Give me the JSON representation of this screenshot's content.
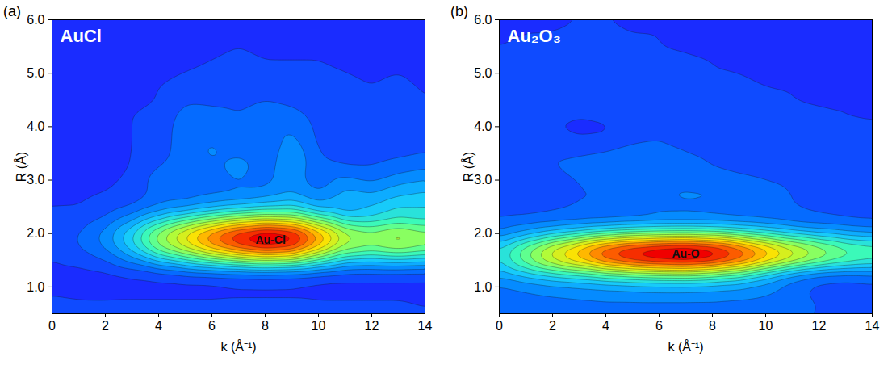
{
  "chart_data": [
    {
      "type": "contour",
      "panel": "(a)",
      "title": "AuCl",
      "x_label": "k (Å⁻¹)",
      "y_label": "R (Å)",
      "xlim": [
        0,
        14
      ],
      "ylim": [
        0.5,
        6
      ],
      "xticks": [
        0,
        2,
        4,
        6,
        8,
        10,
        12,
        14
      ],
      "yticks": [
        1,
        2,
        3,
        4,
        5,
        6
      ],
      "colors": [
        "#1a2cff",
        "#0078ff",
        "#14c8ff",
        "#40ffb0",
        "#a8ff40",
        "#ffe000",
        "#ff7000",
        "#f00000"
      ],
      "annotations": [
        {
          "text": "Au-Cl",
          "x": 8.2,
          "y": 1.88
        }
      ],
      "k": [
        0,
        1,
        2,
        3,
        4,
        5,
        6,
        7,
        8,
        9,
        10,
        11,
        12,
        13,
        14
      ],
      "R": [
        0.5,
        0.75,
        1.0,
        1.25,
        1.5,
        1.75,
        2.0,
        2.25,
        2.5,
        2.75,
        3.0,
        3.25,
        3.5,
        3.75,
        4.0,
        4.25,
        4.5,
        4.75,
        5.0,
        5.25,
        5.5,
        5.75,
        6.0
      ],
      "cells": [
        [
          0.1,
          0.09,
          0.08,
          0.08,
          0.08,
          0.08,
          0.08,
          0.08,
          0.08,
          0.08,
          0.07,
          0.07,
          0.07,
          0.07,
          0.06
        ],
        [
          0.06,
          0.05,
          0.05,
          0.05,
          0.05,
          0.05,
          0.05,
          0.05,
          0.05,
          0.05,
          0.05,
          0.05,
          0.05,
          0.05,
          0.04
        ],
        [
          0.03,
          0.02,
          0.02,
          0.03,
          0.03,
          0.03,
          0.03,
          0.04,
          0.04,
          0.04,
          0.03,
          0.03,
          0.03,
          0.03,
          0.03
        ],
        [
          0.03,
          0.03,
          0.04,
          0.06,
          0.08,
          0.1,
          0.11,
          0.12,
          0.13,
          0.12,
          0.1,
          0.08,
          0.08,
          0.08,
          0.08
        ],
        [
          0.05,
          0.07,
          0.1,
          0.17,
          0.27,
          0.34,
          0.41,
          0.47,
          0.51,
          0.49,
          0.39,
          0.29,
          0.27,
          0.29,
          0.27
        ],
        [
          0.07,
          0.1,
          0.16,
          0.29,
          0.46,
          0.58,
          0.71,
          0.81,
          0.88,
          0.84,
          0.67,
          0.5,
          0.46,
          0.5,
          0.46
        ],
        [
          0.08,
          0.1,
          0.17,
          0.3,
          0.48,
          0.62,
          0.75,
          0.86,
          0.93,
          0.89,
          0.71,
          0.53,
          0.48,
          0.53,
          0.48
        ],
        [
          0.06,
          0.07,
          0.11,
          0.19,
          0.3,
          0.39,
          0.47,
          0.54,
          0.58,
          0.55,
          0.44,
          0.33,
          0.32,
          0.36,
          0.34
        ],
        [
          0.05,
          0.05,
          0.07,
          0.1,
          0.15,
          0.18,
          0.22,
          0.25,
          0.28,
          0.3,
          0.22,
          0.2,
          0.25,
          0.3,
          0.3
        ],
        [
          0.04,
          0.04,
          0.05,
          0.07,
          0.12,
          0.12,
          0.14,
          0.15,
          0.17,
          0.2,
          0.15,
          0.22,
          0.2,
          0.24,
          0.26
        ],
        [
          0.04,
          0.04,
          0.04,
          0.06,
          0.14,
          0.12,
          0.12,
          0.15,
          0.13,
          0.18,
          0.12,
          0.17,
          0.14,
          0.18,
          0.2
        ],
        [
          0.04,
          0.04,
          0.04,
          0.05,
          0.1,
          0.12,
          0.14,
          0.18,
          0.12,
          0.2,
          0.11,
          0.1,
          0.1,
          0.12,
          0.14
        ],
        [
          0.04,
          0.04,
          0.04,
          0.05,
          0.07,
          0.13,
          0.16,
          0.14,
          0.11,
          0.2,
          0.1,
          0.08,
          0.08,
          0.09,
          0.1
        ],
        [
          0.04,
          0.04,
          0.04,
          0.05,
          0.06,
          0.14,
          0.15,
          0.12,
          0.11,
          0.17,
          0.09,
          0.07,
          0.07,
          0.07,
          0.08
        ],
        [
          0.03,
          0.03,
          0.04,
          0.05,
          0.06,
          0.14,
          0.13,
          0.11,
          0.12,
          0.14,
          0.09,
          0.07,
          0.06,
          0.06,
          0.07
        ],
        [
          0.03,
          0.03,
          0.04,
          0.05,
          0.06,
          0.12,
          0.11,
          0.1,
          0.12,
          0.11,
          0.09,
          0.08,
          0.06,
          0.08,
          0.06
        ],
        [
          0.03,
          0.03,
          0.03,
          0.04,
          0.05,
          0.09,
          0.09,
          0.09,
          0.1,
          0.09,
          0.08,
          0.08,
          0.06,
          0.09,
          0.05
        ],
        [
          0.02,
          0.03,
          0.03,
          0.04,
          0.05,
          0.07,
          0.08,
          0.08,
          0.08,
          0.07,
          0.07,
          0.07,
          0.05,
          0.07,
          0.04
        ],
        [
          0.02,
          0.02,
          0.03,
          0.03,
          0.04,
          0.05,
          0.06,
          0.07,
          0.06,
          0.06,
          0.06,
          0.05,
          0.04,
          0.05,
          0.03
        ],
        [
          0.02,
          0.02,
          0.02,
          0.03,
          0.03,
          0.04,
          0.05,
          0.06,
          0.05,
          0.05,
          0.05,
          0.04,
          0.03,
          0.03,
          0.03
        ],
        [
          0.02,
          0.02,
          0.02,
          0.02,
          0.03,
          0.03,
          0.04,
          0.05,
          0.04,
          0.04,
          0.04,
          0.03,
          0.03,
          0.03,
          0.02
        ],
        [
          0.01,
          0.02,
          0.02,
          0.02,
          0.02,
          0.03,
          0.03,
          0.04,
          0.03,
          0.03,
          0.03,
          0.03,
          0.02,
          0.02,
          0.02
        ],
        [
          0.01,
          0.01,
          0.02,
          0.02,
          0.02,
          0.02,
          0.03,
          0.03,
          0.03,
          0.03,
          0.02,
          0.02,
          0.02,
          0.02,
          0.02
        ]
      ]
    },
    {
      "type": "contour",
      "panel": "(b)",
      "title": "Au₂O₃",
      "x_label": "k (Å⁻¹)",
      "y_label": "R (Å)",
      "xlim": [
        0,
        14
      ],
      "ylim": [
        0.5,
        6
      ],
      "xticks": [
        0,
        2,
        4,
        6,
        8,
        10,
        12,
        14
      ],
      "yticks": [
        1,
        2,
        3,
        4,
        5,
        6
      ],
      "colors": [
        "#1a2cff",
        "#0078ff",
        "#14c8ff",
        "#40ffb0",
        "#a8ff40",
        "#ffe000",
        "#ff7000",
        "#f00000"
      ],
      "annotations": [
        {
          "text": "Au-O",
          "x": 7.0,
          "y": 1.62
        }
      ],
      "k": [
        0,
        1,
        2,
        3,
        4,
        5,
        6,
        7,
        8,
        9,
        10,
        11,
        12,
        13,
        14
      ],
      "R": [
        0.5,
        0.75,
        1.0,
        1.25,
        1.5,
        1.75,
        2.0,
        2.25,
        2.5,
        2.75,
        3.0,
        3.25,
        3.5,
        3.75,
        4.0,
        4.25,
        4.5,
        4.75,
        5.0,
        5.25,
        5.5,
        5.75,
        6.0
      ],
      "cells": [
        [
          0.1,
          0.1,
          0.1,
          0.1,
          0.1,
          0.1,
          0.1,
          0.1,
          0.1,
          0.1,
          0.1,
          0.1,
          0.1,
          0.1,
          0.1
        ],
        [
          0.12,
          0.13,
          0.14,
          0.15,
          0.16,
          0.16,
          0.16,
          0.16,
          0.16,
          0.15,
          0.14,
          0.12,
          0.1,
          0.09,
          0.08
        ],
        [
          0.14,
          0.16,
          0.18,
          0.19,
          0.2,
          0.21,
          0.22,
          0.22,
          0.21,
          0.2,
          0.17,
          0.12,
          0.08,
          0.07,
          0.08
        ],
        [
          0.22,
          0.28,
          0.33,
          0.37,
          0.42,
          0.45,
          0.47,
          0.48,
          0.45,
          0.4,
          0.3,
          0.2,
          0.15,
          0.14,
          0.15
        ],
        [
          0.3,
          0.44,
          0.57,
          0.67,
          0.79,
          0.86,
          0.9,
          0.92,
          0.88,
          0.79,
          0.67,
          0.57,
          0.48,
          0.41,
          0.37
        ],
        [
          0.3,
          0.43,
          0.56,
          0.67,
          0.78,
          0.85,
          0.89,
          0.91,
          0.87,
          0.78,
          0.67,
          0.56,
          0.48,
          0.41,
          0.38
        ],
        [
          0.16,
          0.22,
          0.28,
          0.33,
          0.38,
          0.42,
          0.44,
          0.45,
          0.43,
          0.39,
          0.34,
          0.29,
          0.25,
          0.22,
          0.2
        ],
        [
          0.1,
          0.11,
          0.12,
          0.13,
          0.14,
          0.15,
          0.16,
          0.16,
          0.16,
          0.15,
          0.14,
          0.12,
          0.11,
          0.1,
          0.09
        ],
        [
          0.08,
          0.08,
          0.09,
          0.1,
          0.1,
          0.11,
          0.14,
          0.14,
          0.13,
          0.12,
          0.11,
          0.1,
          0.09,
          0.08,
          0.08
        ],
        [
          0.08,
          0.08,
          0.09,
          0.1,
          0.1,
          0.12,
          0.15,
          0.16,
          0.16,
          0.15,
          0.12,
          0.1,
          0.09,
          0.08,
          0.08
        ],
        [
          0.08,
          0.08,
          0.09,
          0.1,
          0.11,
          0.12,
          0.13,
          0.13,
          0.12,
          0.11,
          0.1,
          0.09,
          0.08,
          0.08,
          0.07
        ],
        [
          0.08,
          0.09,
          0.1,
          0.11,
          0.12,
          0.14,
          0.15,
          0.12,
          0.1,
          0.09,
          0.08,
          0.08,
          0.07,
          0.07,
          0.07
        ],
        [
          0.08,
          0.09,
          0.1,
          0.1,
          0.11,
          0.12,
          0.11,
          0.1,
          0.09,
          0.08,
          0.08,
          0.07,
          0.07,
          0.07,
          0.06
        ],
        [
          0.08,
          0.08,
          0.08,
          0.06,
          0.06,
          0.09,
          0.1,
          0.09,
          0.08,
          0.08,
          0.07,
          0.07,
          0.06,
          0.06,
          0.06
        ],
        [
          0.08,
          0.07,
          0.05,
          0.03,
          0.04,
          0.08,
          0.09,
          0.08,
          0.08,
          0.07,
          0.07,
          0.06,
          0.06,
          0.05,
          0.05
        ],
        [
          0.08,
          0.08,
          0.07,
          0.06,
          0.07,
          0.09,
          0.09,
          0.08,
          0.07,
          0.07,
          0.06,
          0.06,
          0.05,
          0.05,
          0.05
        ],
        [
          0.08,
          0.09,
          0.1,
          0.1,
          0.1,
          0.1,
          0.09,
          0.08,
          0.07,
          0.06,
          0.06,
          0.05,
          0.05,
          0.05,
          0.04
        ],
        [
          0.08,
          0.09,
          0.1,
          0.1,
          0.1,
          0.09,
          0.08,
          0.07,
          0.06,
          0.06,
          0.05,
          0.05,
          0.04,
          0.04,
          0.04
        ],
        [
          0.07,
          0.08,
          0.09,
          0.09,
          0.09,
          0.08,
          0.07,
          0.06,
          0.05,
          0.05,
          0.04,
          0.04,
          0.04,
          0.03,
          0.03
        ],
        [
          0.06,
          0.07,
          0.08,
          0.08,
          0.08,
          0.07,
          0.06,
          0.05,
          0.05,
          0.04,
          0.04,
          0.03,
          0.03,
          0.03,
          0.03
        ],
        [
          0.05,
          0.06,
          0.07,
          0.07,
          0.07,
          0.06,
          0.05,
          0.05,
          0.04,
          0.04,
          0.03,
          0.03,
          0.03,
          0.02,
          0.02
        ],
        [
          0.04,
          0.05,
          0.05,
          0.06,
          0.06,
          0.05,
          0.05,
          0.04,
          0.04,
          0.03,
          0.03,
          0.02,
          0.02,
          0.02,
          0.02
        ],
        [
          0.03,
          0.04,
          0.04,
          0.05,
          0.05,
          0.04,
          0.04,
          0.03,
          0.03,
          0.03,
          0.02,
          0.02,
          0.02,
          0.02,
          0.02
        ]
      ]
    }
  ]
}
